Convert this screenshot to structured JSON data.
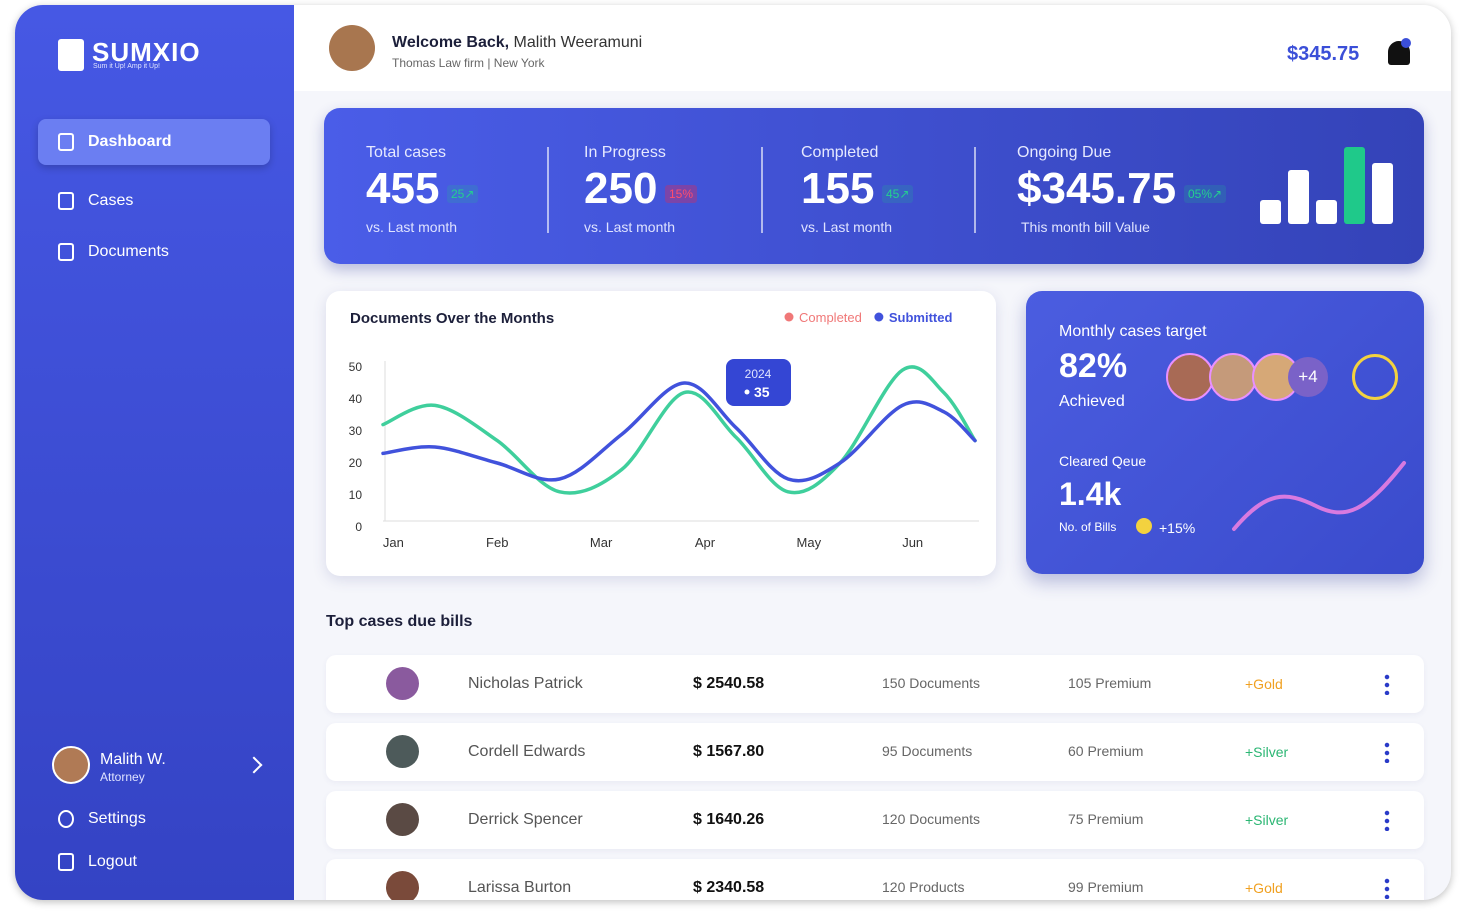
{
  "brand": {
    "name": "SUMXIO",
    "tagline": "Sum it Up! Amp it Up!"
  },
  "nav": [
    "Dashboard",
    "Cases",
    "Documents"
  ],
  "user": {
    "name": "Malith W.",
    "role": "Attorney"
  },
  "bottom_nav": [
    "Settings",
    "Logout"
  ],
  "header": {
    "welcome": "Welcome Back,",
    "name": "Malith Weeramuni",
    "subtitle": "Thomas Law firm | New York",
    "balance": "$345.75"
  },
  "stats": [
    {
      "label": "Total cases",
      "value": "455",
      "change": "25↗",
      "note": "vs. Last month",
      "trend": "up"
    },
    {
      "label": "In Progress",
      "value": "250",
      "change": "15%",
      "note": "vs. Last month",
      "trend": "down"
    },
    {
      "label": "Completed",
      "value": "155",
      "change": "45↗",
      "note": "vs. Last month",
      "trend": "up"
    },
    {
      "label": "Ongoing Due",
      "value": "$345.75",
      "change": "05%↗",
      "note": "This month bill Value",
      "trend": "up"
    }
  ],
  "chart_data": {
    "type": "line",
    "title": "Documents Over the Months",
    "x": [
      -0.1,
      0.4,
      1.0,
      1.6,
      2.2,
      2.8,
      3.3,
      3.8,
      4.3,
      4.9,
      5.3,
      5.6
    ],
    "xlim": [
      -0.1,
      5.6
    ],
    "xticks": [
      {
        "value": 0,
        "label": "Jan"
      },
      {
        "value": 1,
        "label": "Feb"
      },
      {
        "value": 2,
        "label": "Mar"
      },
      {
        "value": 3,
        "label": "Apr"
      },
      {
        "value": 4,
        "label": "May"
      },
      {
        "value": 5,
        "label": "Jun"
      }
    ],
    "ylim": [
      0,
      50
    ],
    "yticks": [
      0,
      10,
      20,
      30,
      40,
      50
    ],
    "grid": false,
    "series": [
      {
        "name": "Completed",
        "color": "#3fcf9c",
        "legend_color": "#f07878",
        "values": [
          32,
          38,
          27,
          11,
          18,
          42,
          28,
          11,
          20,
          49,
          42,
          27
        ]
      },
      {
        "name": "Submitted",
        "color": "#4152dc",
        "legend_color": "#4152dc",
        "values": [
          23,
          25,
          20,
          15,
          29,
          45,
          31,
          15,
          20,
          38,
          36,
          27
        ]
      }
    ],
    "annotation": {
      "label": "2024",
      "value": 35
    }
  },
  "target": {
    "title": "Monthly cases target",
    "percent": "82%",
    "status": "Achieved",
    "more": "+4",
    "cleared_title": "Cleared Qeue",
    "cleared_value": "1.4k",
    "cleared_label": "No. of Bills",
    "cleared_change": "+15%"
  },
  "table": {
    "title": "Top cases due bills",
    "rows": [
      [
        "Nicholas Patrick",
        "$ 2540.58",
        "150 Documents",
        "105 Premium",
        "+Gold"
      ],
      [
        "Cordell Edwards",
        "$ 1567.80",
        "95 Documents",
        "60 Premium",
        "+Silver"
      ],
      [
        "Derrick Spencer",
        "$ 1640.26",
        "120 Documents",
        "75 Premium",
        "+Silver"
      ],
      [
        "Larissa Burton",
        "$ 2340.58",
        "120 Products",
        "99 Premium",
        "+Gold"
      ]
    ]
  }
}
